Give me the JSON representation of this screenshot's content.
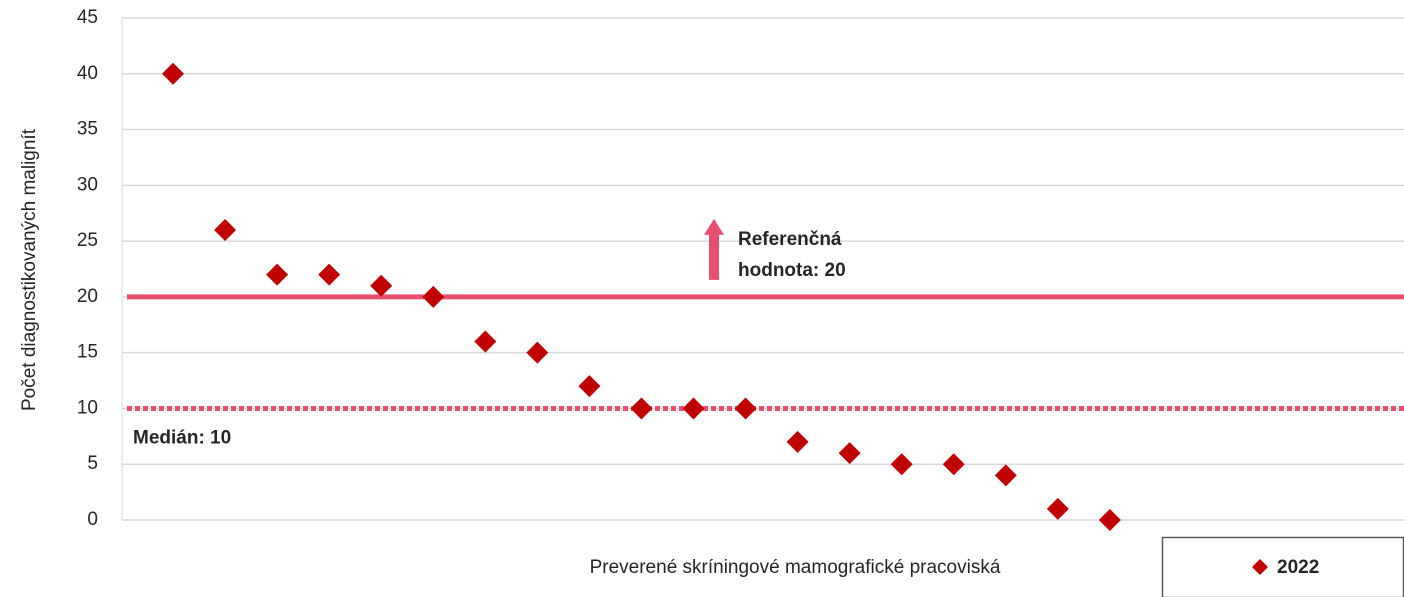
{
  "chart_data": {
    "type": "scatter",
    "xlabel": "Preverené skríningové mamografické pracoviská",
    "ylabel": "Počet diagnostikovaných malignít",
    "categories": [
      null,
      null,
      null,
      null,
      null,
      null,
      null,
      null,
      null,
      null,
      null,
      null,
      null,
      null,
      null,
      null,
      null,
      null,
      null
    ],
    "series": [
      {
        "name": "2022",
        "color": "#c00000",
        "values": [
          40,
          26,
          22,
          22,
          21,
          20,
          16,
          15,
          12,
          10,
          10,
          10,
          7,
          6,
          5,
          5,
          4,
          1,
          0
        ]
      }
    ],
    "ylim": [
      0,
      45
    ],
    "yticks": [
      0,
      5,
      10,
      15,
      20,
      25,
      30,
      35,
      40,
      45
    ],
    "grid": true,
    "reference_lines": [
      {
        "value": 20,
        "label": [
          "Referenčná",
          "hodnota: 20"
        ],
        "color": "#e8506f",
        "style": "solid"
      },
      {
        "value": 10,
        "label": [
          "Medián: 10"
        ],
        "color": "#e8506f",
        "style": "dotted"
      }
    ],
    "legend": "bottom-right"
  }
}
